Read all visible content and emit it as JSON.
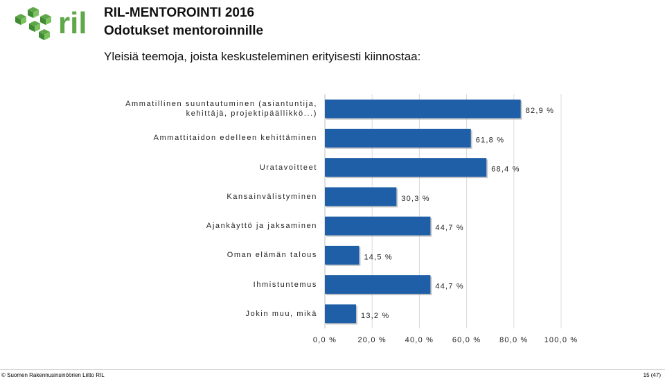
{
  "header": {
    "title_line1": "RIL-MENTOROINTI 2016",
    "title_line2": "Odotukset mentoroinnille",
    "question": "Yleisiä teemoja, joista keskusteleminen erityisesti kiinnostaa:"
  },
  "logo": {
    "text": "ril",
    "icon": "green-cube-cluster-logo",
    "color": "#5fa84a"
  },
  "chart_data": {
    "type": "bar",
    "orientation": "horizontal",
    "categories": [
      "Ammatillinen suuntautuminen (asiantuntija, kehittäjä, projektipäällikkö...)",
      "Ammattitaidon edelleen kehittäminen",
      "Uratavoitteet",
      "Kansainvälistyminen",
      "Ajankäyttö ja jaksaminen",
      "Oman elämän talous",
      "Ihmistuntemus",
      "Jokin muu, mikä"
    ],
    "values": [
      82.9,
      61.8,
      68.4,
      30.3,
      44.7,
      14.5,
      44.7,
      13.2
    ],
    "data_labels": [
      "82,9 %",
      "61,8 %",
      "68,4 %",
      "30,3 %",
      "44,7 %",
      "14,5 %",
      "44,7 %",
      "13,2 %"
    ],
    "xlim": [
      0,
      100
    ],
    "ticks": [
      "0,0 %",
      "20,0 %",
      "40,0 %",
      "60,0 %",
      "80,0 %",
      "100,0 %"
    ],
    "grid": true,
    "bar_color": "#1f5fa8"
  },
  "footer": {
    "left": "© Suomen Rakennusinsinöörien Liitto RIL",
    "right": "15 (47)"
  }
}
